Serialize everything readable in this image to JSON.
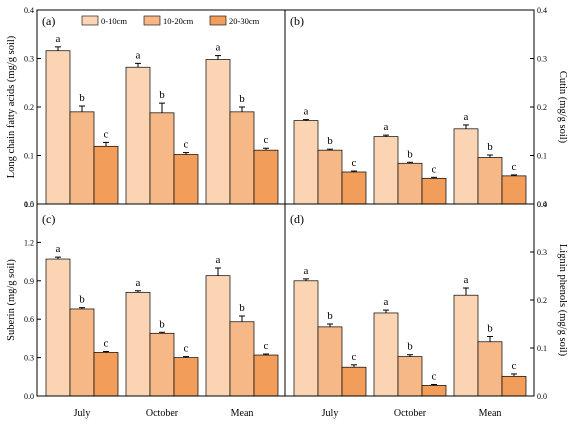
{
  "colors": {
    "s0": "#fbd5b3",
    "s1": "#f7b888",
    "s2": "#f29d5a",
    "stroke": "#000000"
  },
  "legend": [
    "0-10cm",
    "10-20cm",
    "20-30cm"
  ],
  "chart_data": [
    {
      "type": "bar",
      "panel_label": "(a)",
      "categories": [
        "July",
        "October",
        "Mean"
      ],
      "ylabel": "Long chain fatty acids (mg/g soil)",
      "ylim": [
        0,
        0.4
      ],
      "yticks": [
        "0.0",
        "0.1",
        "0.2",
        "0.3",
        "0.4"
      ],
      "series": [
        {
          "name": "0-10cm",
          "values": [
            0.316,
            0.282,
            0.298
          ],
          "err": [
            0.008,
            0.008,
            0.008
          ],
          "labels": [
            "a",
            "a",
            "a"
          ]
        },
        {
          "name": "10-20cm",
          "values": [
            0.19,
            0.188,
            0.19
          ],
          "err": [
            0.012,
            0.02,
            0.01
          ],
          "labels": [
            "b",
            "b",
            "b"
          ]
        },
        {
          "name": "20-30cm",
          "values": [
            0.119,
            0.102,
            0.111
          ],
          "err": [
            0.008,
            0.004,
            0.004
          ],
          "labels": [
            "c",
            "c",
            "c"
          ]
        }
      ]
    },
    {
      "type": "bar",
      "panel_label": "(b)",
      "categories": [
        "July",
        "October",
        "Mean"
      ],
      "ylabel": "Cutin (mg/g soil)",
      "ylim": [
        0,
        0.4
      ],
      "yticks": [
        "0.0",
        "0.1",
        "0.2",
        "0.3",
        "0.4"
      ],
      "series": [
        {
          "name": "0-10cm",
          "values": [
            0.172,
            0.139,
            0.155
          ],
          "err": [
            0.002,
            0.003,
            0.008
          ],
          "labels": [
            "a",
            "a",
            "a"
          ]
        },
        {
          "name": "10-20cm",
          "values": [
            0.111,
            0.084,
            0.096
          ],
          "err": [
            0.002,
            0.002,
            0.005
          ],
          "labels": [
            "b",
            "b",
            "b"
          ]
        },
        {
          "name": "20-30cm",
          "values": [
            0.066,
            0.053,
            0.058
          ],
          "err": [
            0.002,
            0.002,
            0.002
          ],
          "labels": [
            "c",
            "c",
            "c"
          ]
        }
      ]
    },
    {
      "type": "bar",
      "panel_label": "(c)",
      "categories": [
        "July",
        "October",
        "Mean"
      ],
      "ylabel": "Suberin (mg/g soil)",
      "ylim": [
        0,
        1.5
      ],
      "yticks": [
        "0.0",
        "0.3",
        "0.6",
        "0.9",
        "1.2",
        "1.5"
      ],
      "series": [
        {
          "name": "0-10cm",
          "values": [
            1.07,
            0.81,
            0.94
          ],
          "err": [
            0.015,
            0.012,
            0.06
          ],
          "labels": [
            "a",
            "a",
            "a"
          ]
        },
        {
          "name": "10-20cm",
          "values": [
            0.68,
            0.49,
            0.58
          ],
          "err": [
            0.01,
            0.008,
            0.045
          ],
          "labels": [
            "b",
            "b",
            "b"
          ]
        },
        {
          "name": "20-30cm",
          "values": [
            0.34,
            0.3,
            0.32
          ],
          "err": [
            0.008,
            0.008,
            0.008
          ],
          "labels": [
            "c",
            "c",
            "c"
          ]
        }
      ]
    },
    {
      "type": "bar",
      "panel_label": "(d)",
      "categories": [
        "July",
        "October",
        "Mean"
      ],
      "ylabel": "Lignin phenols (mg/g soil)",
      "ylim": [
        0,
        0.4
      ],
      "yticks": [
        "0.0",
        "0.1",
        "0.2",
        "0.3",
        "0.4"
      ],
      "series": [
        {
          "name": "0-10cm",
          "values": [
            0.24,
            0.173,
            0.21
          ],
          "err": [
            0.004,
            0.006,
            0.015
          ],
          "labels": [
            "a",
            "a",
            "a"
          ]
        },
        {
          "name": "10-20cm",
          "values": [
            0.144,
            0.082,
            0.113
          ],
          "err": [
            0.006,
            0.004,
            0.011
          ],
          "labels": [
            "b",
            "b",
            "b"
          ]
        },
        {
          "name": "20-30cm",
          "values": [
            0.06,
            0.022,
            0.041
          ],
          "err": [
            0.005,
            0.002,
            0.005
          ],
          "labels": [
            "c",
            "c",
            "c"
          ]
        }
      ]
    }
  ]
}
